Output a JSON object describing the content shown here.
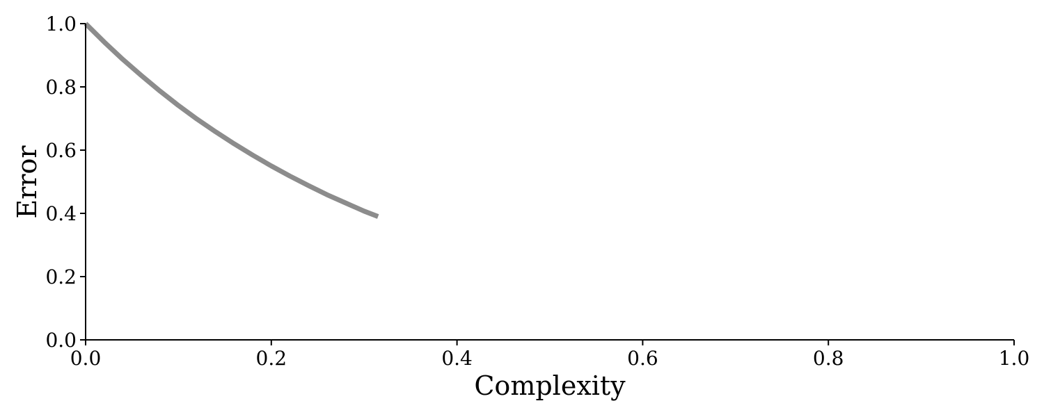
{
  "chart_data": {
    "type": "line",
    "title": "",
    "xlabel": "Complexity",
    "ylabel": "Error",
    "xlim": [
      0.0,
      1.0
    ],
    "ylim": [
      0.0,
      1.0
    ],
    "grid": false,
    "legend": "none",
    "x_ticks": [
      "0.0",
      "0.2",
      "0.4",
      "0.6",
      "0.8",
      "1.0"
    ],
    "y_ticks": [
      "0.0",
      "0.2",
      "0.4",
      "0.6",
      "0.8",
      "1.0"
    ],
    "series": [
      {
        "color": "#8c8c8c",
        "x": [
          0.0,
          0.02,
          0.04,
          0.06,
          0.08,
          0.1,
          0.12,
          0.14,
          0.16,
          0.18,
          0.2,
          0.22,
          0.24,
          0.26,
          0.28,
          0.3,
          0.315
        ],
        "y": [
          1.0,
          0.942,
          0.887,
          0.836,
          0.787,
          0.741,
          0.698,
          0.658,
          0.62,
          0.584,
          0.55,
          0.518,
          0.488,
          0.459,
          0.433,
          0.407,
          0.39
        ]
      }
    ]
  }
}
